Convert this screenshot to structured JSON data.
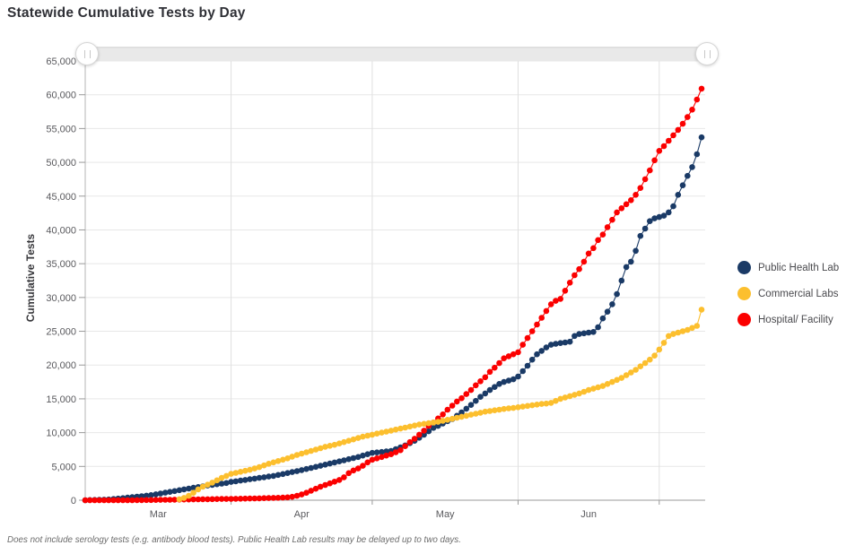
{
  "title": "Statewide Cumulative Tests by Day",
  "footer_note": "Does not include serology tests (e.g. antibody blood tests). Public Health Lab results may be delayed up to two days.",
  "y_axis": {
    "label": "Cumulative Tests",
    "ticks": [
      0,
      5000,
      10000,
      15000,
      20000,
      25000,
      30000,
      35000,
      40000,
      45000,
      50000,
      55000,
      60000,
      65000
    ],
    "tick_labels": [
      "0",
      "5,000",
      "10,000",
      "15,000",
      "20,000",
      "25,000",
      "30,000",
      "35,000",
      "40,000",
      "45,000",
      "50,000",
      "55,000",
      "60,000",
      "65,000"
    ]
  },
  "x_axis": {
    "months": [
      {
        "label": "Mar",
        "days": 31
      },
      {
        "label": "Apr",
        "days": 30
      },
      {
        "label": "May",
        "days": 31
      },
      {
        "label": "Jun",
        "days": 30
      }
    ],
    "trailing_days": 10
  },
  "slider": {
    "left_handle_icon": "grip",
    "right_handle_icon": "grip"
  },
  "colors": {
    "grid": "#e7e7e7",
    "axis": "#9a9a9a",
    "tick_text": "#59595d"
  },
  "chart_data": {
    "type": "line",
    "x_unit": "day",
    "x_range_label": "Mar 1 - Jul 10",
    "ylim": [
      0,
      65000
    ],
    "grid": true,
    "legend_position": "right",
    "series": [
      {
        "name": "Public Health Lab",
        "color": "#1a3a66",
        "values": [
          0,
          20,
          40,
          60,
          80,
          100,
          170,
          240,
          310,
          380,
          450,
          525,
          600,
          675,
          750,
          870,
          990,
          1110,
          1230,
          1355,
          1480,
          1605,
          1730,
          1840,
          1950,
          2060,
          2170,
          2265,
          2360,
          2455,
          2550,
          2700,
          2800,
          2900,
          3000,
          3100,
          3200,
          3300,
          3400,
          3500,
          3600,
          3740,
          3880,
          4020,
          4160,
          4300,
          4460,
          4620,
          4780,
          4940,
          5100,
          5260,
          5420,
          5580,
          5740,
          5900,
          6070,
          6230,
          6400,
          6600,
          6800,
          7000,
          7070,
          7140,
          7220,
          7300,
          7550,
          7820,
          8100,
          8450,
          8800,
          9250,
          9700,
          10200,
          10700,
          11000,
          11350,
          11700,
          12000,
          12500,
          13000,
          13550,
          14100,
          14700,
          15300,
          15800,
          16300,
          16750,
          17200,
          17500,
          17700,
          17900,
          18300,
          19100,
          19900,
          20800,
          21600,
          22100,
          22600,
          23000,
          23150,
          23250,
          23350,
          23450,
          24300,
          24600,
          24700,
          24800,
          24900,
          25600,
          26900,
          27900,
          29000,
          30500,
          32500,
          34500,
          35300,
          36900,
          39100,
          40200,
          41300,
          41700,
          41900,
          42100,
          42600,
          43500,
          45200,
          46600,
          48000,
          49300,
          51200,
          53700
        ]
      },
      {
        "name": "Commercial Labs",
        "color": "#fcbf2e",
        "values": [
          null,
          null,
          null,
          null,
          null,
          null,
          null,
          null,
          null,
          null,
          null,
          null,
          null,
          null,
          null,
          null,
          null,
          null,
          null,
          null,
          150,
          350,
          650,
          1100,
          1600,
          2000,
          2300,
          2600,
          2950,
          3300,
          3600,
          3900,
          4050,
          4200,
          4350,
          4500,
          4700,
          4900,
          5150,
          5400,
          5600,
          5800,
          6000,
          6200,
          6450,
          6700,
          6900,
          7100,
          7300,
          7500,
          7700,
          7900,
          8050,
          8200,
          8400,
          8600,
          8800,
          9000,
          9200,
          9400,
          9550,
          9700,
          9850,
          10000,
          10150,
          10300,
          10450,
          10600,
          10750,
          10900,
          11050,
          11200,
          11300,
          11400,
          11500,
          11600,
          11750,
          11900,
          12050,
          12200,
          12350,
          12500,
          12650,
          12800,
          12950,
          13100,
          13200,
          13300,
          13400,
          13500,
          13600,
          13650,
          13750,
          13850,
          13950,
          14050,
          14150,
          14250,
          14300,
          14400,
          14700,
          15000,
          15200,
          15400,
          15600,
          15800,
          16050,
          16300,
          16500,
          16700,
          16900,
          17200,
          17500,
          17800,
          18100,
          18500,
          18900,
          19300,
          19800,
          20300,
          20800,
          21400,
          22300,
          23300,
          24300,
          24600,
          24800,
          25000,
          25200,
          25500,
          25800,
          28200
        ]
      },
      {
        "name": "Hospital/ Facility",
        "color": "#fb0000",
        "values": [
          0,
          0,
          0,
          0,
          0,
          0,
          0,
          0,
          0,
          0,
          0,
          10,
          15,
          20,
          30,
          40,
          50,
          60,
          70,
          80,
          90,
          100,
          110,
          120,
          130,
          140,
          150,
          160,
          170,
          180,
          190,
          200,
          210,
          220,
          235,
          250,
          265,
          280,
          300,
          320,
          340,
          360,
          390,
          420,
          500,
          650,
          850,
          1100,
          1400,
          1700,
          2000,
          2250,
          2500,
          2750,
          3000,
          3400,
          4000,
          4400,
          4700,
          5100,
          5600,
          6000,
          6200,
          6400,
          6600,
          6800,
          7100,
          7400,
          8000,
          8600,
          9100,
          9700,
          10300,
          11000,
          11500,
          12100,
          12700,
          13400,
          14000,
          14600,
          15100,
          15700,
          16300,
          17000,
          17600,
          18200,
          19000,
          19600,
          20300,
          21000,
          21300,
          21600,
          21900,
          23000,
          24000,
          25000,
          26000,
          27000,
          28000,
          29000,
          29500,
          29800,
          31000,
          32200,
          33300,
          34200,
          35300,
          36500,
          37300,
          38500,
          39300,
          40400,
          41500,
          42600,
          43200,
          43800,
          44400,
          45200,
          46200,
          47500,
          48800,
          50300,
          51700,
          52400,
          53200,
          54000,
          54800,
          55700,
          56700,
          57800,
          59300,
          60900
        ]
      }
    ]
  }
}
